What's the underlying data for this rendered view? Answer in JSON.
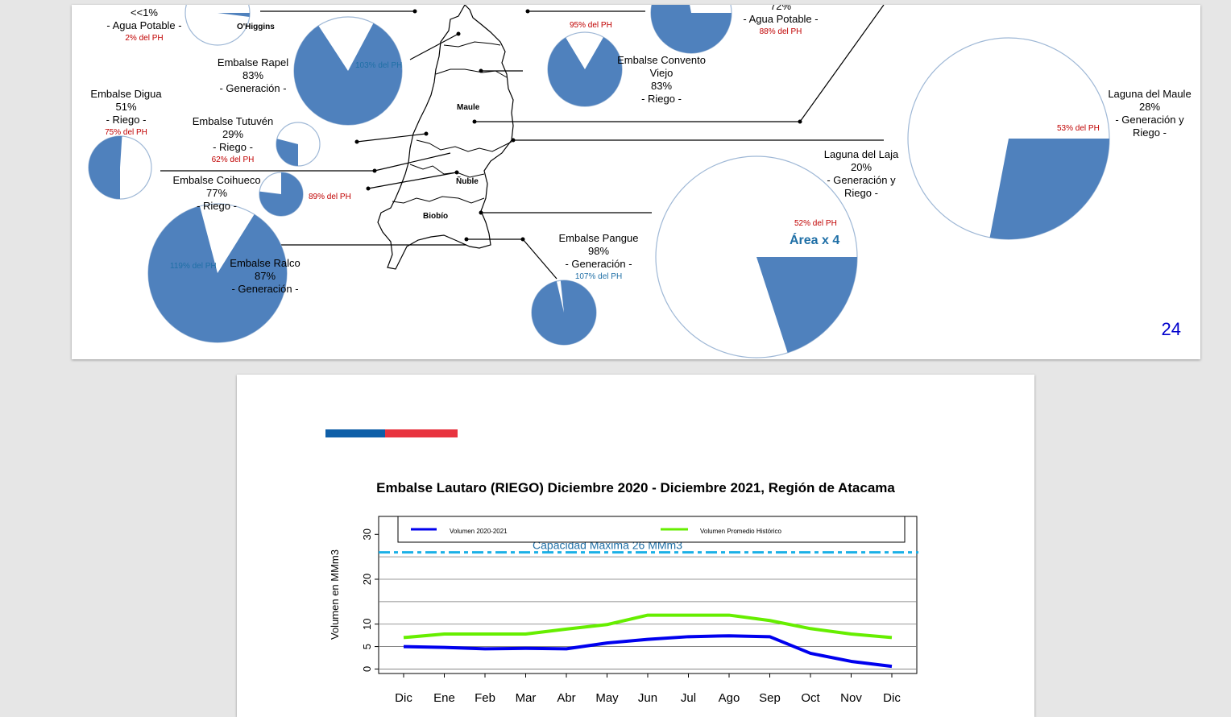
{
  "page_number": "24",
  "area_note": "Área x 4",
  "regions": [
    "O'Higgins",
    "Maule",
    "Ñuble",
    "Biobío"
  ],
  "reservoirs": [
    {
      "name": "",
      "pct": "<<1%",
      "use": "- Agua Potable -",
      "ph": "2% del PH",
      "fill": 0.02,
      "ph_color": "red"
    },
    {
      "name": "",
      "pct": "72%",
      "use": "- Agua Potable -",
      "ph": "88% del PH",
      "fill": 0.72,
      "ph_color": "red"
    },
    {
      "name": "Embalse Rapel",
      "pct": "83%",
      "use": "- Generación -",
      "ph": "103% del PH",
      "fill": 0.83,
      "ph_color": "blue"
    },
    {
      "name": "Embalse Convento Viejo",
      "pct": "83%",
      "use": "- Riego -",
      "ph": "95% del PH",
      "fill": 0.83,
      "ph_color": "red"
    },
    {
      "name": "Embalse Digua",
      "pct": "51%",
      "use": "- Riego -",
      "ph": "75% del PH",
      "fill": 0.51,
      "ph_color": "red"
    },
    {
      "name": "Embalse Tutuvén",
      "pct": "29%",
      "use": "- Riego -",
      "ph": "62% del PH",
      "fill": 0.29,
      "ph_color": "red"
    },
    {
      "name": "Embalse Coihueco",
      "pct": "77%",
      "use": "- Riego -",
      "ph": "89% del PH",
      "fill": 0.77,
      "ph_color": "red"
    },
    {
      "name": "Embalse Ralco",
      "pct": "87%",
      "use": "- Generación -",
      "ph": "119% del PH",
      "fill": 0.87,
      "ph_color": "blue"
    },
    {
      "name": "Embalse Pangue",
      "pct": "98%",
      "use": "- Generación -",
      "ph": "107% del PH",
      "fill": 0.98,
      "ph_color": "blue"
    },
    {
      "name": "Laguna del Laja",
      "pct": "20%",
      "use": "- Generación y Riego -",
      "ph": "52% del PH",
      "fill": 0.2,
      "ph_color": "red"
    },
    {
      "name": "Laguna del Maule",
      "pct": "28%",
      "use": "- Generación y Riego -",
      "ph": "53% del PH",
      "fill": 0.28,
      "ph_color": "red"
    }
  ],
  "colors": {
    "pie_fill": "#4f81bd",
    "flag_blue": "#0f5fa8",
    "flag_red": "#e8343f",
    "series_current": "#0000ee",
    "series_hist": "#66ee00",
    "capacity": "#1ab0e6"
  },
  "chart_data": {
    "type": "line",
    "title": "Embalse Lautaro (RIEGO) Diciembre 2020 - Diciembre 2021, Región de Atacama",
    "ylabel": "Volumen en MMm3",
    "xlabel": "",
    "categories": [
      "Dic",
      "Ene",
      "Feb",
      "Mar",
      "Abr",
      "May",
      "Jun",
      "Jul",
      "Ago",
      "Sep",
      "Oct",
      "Nov",
      "Dic"
    ],
    "ylim": [
      -1,
      34
    ],
    "yticks": [
      0,
      5,
      10,
      20,
      30
    ],
    "grid": true,
    "legend_position": "top",
    "series": [
      {
        "name": "Volumen 2020-2021",
        "color": "#0000ee",
        "values": [
          5.0,
          4.8,
          4.5,
          4.6,
          4.5,
          5.8,
          6.6,
          7.2,
          7.4,
          7.2,
          3.5,
          1.7,
          0.6
        ]
      },
      {
        "name": "Volumen Promedio Histórico",
        "color": "#66ee00",
        "values": [
          7.0,
          7.8,
          7.8,
          7.8,
          8.9,
          9.9,
          12.0,
          12.0,
          12.0,
          10.8,
          9.0,
          7.8,
          7.0
        ]
      }
    ],
    "reference_line": {
      "label": "Capacidad Máxima 26 MMm3",
      "value": 26
    }
  }
}
